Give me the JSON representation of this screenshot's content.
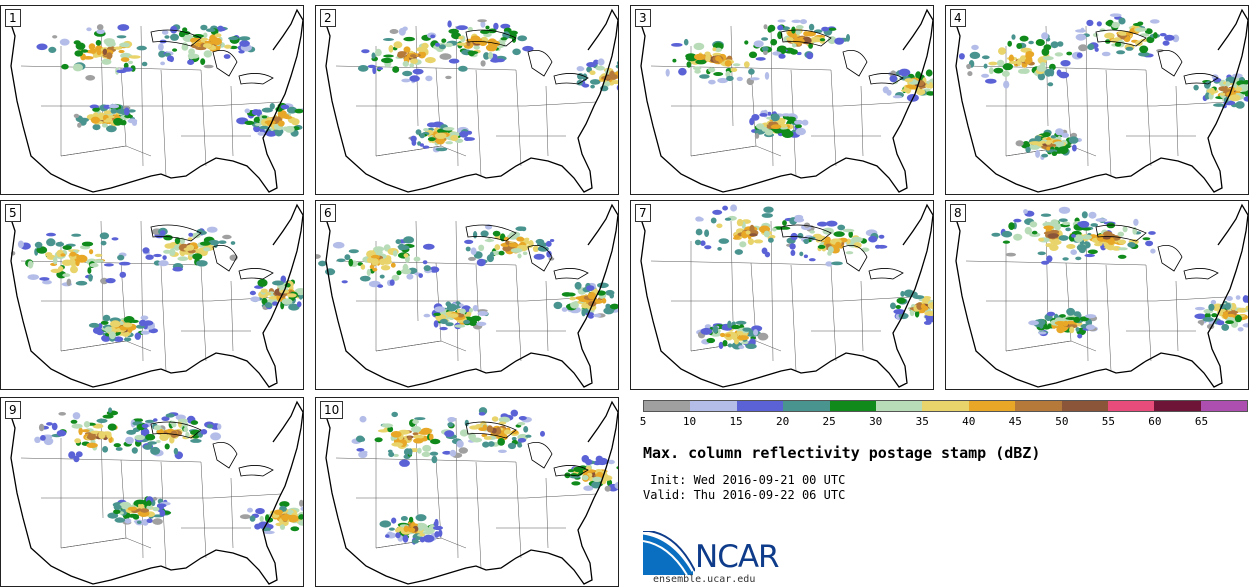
{
  "panels": [
    {
      "label": "1"
    },
    {
      "label": "2"
    },
    {
      "label": "3"
    },
    {
      "label": "4"
    },
    {
      "label": "5"
    },
    {
      "label": "6"
    },
    {
      "label": "7"
    },
    {
      "label": "8"
    },
    {
      "label": "9"
    },
    {
      "label": "10"
    }
  ],
  "colorbar": {
    "colors": [
      "#a0a0a0",
      "#b4bde8",
      "#5b62d6",
      "#4a9490",
      "#0f8a1b",
      "#b9dcb8",
      "#e8d46a",
      "#e8a726",
      "#b57a39",
      "#8a5538",
      "#e84c7a",
      "#6e1436",
      "#ad4fb0"
    ],
    "tick_labels": [
      "5",
      "10",
      "15",
      "20",
      "25",
      "30",
      "35",
      "40",
      "45",
      "50",
      "55",
      "60",
      "65"
    ]
  },
  "title": "Max. column reflectivity postage stamp (dBZ)",
  "init_line": " Init: Wed 2016-09-21 00 UTC",
  "valid_line": "Valid: Thu 2016-09-22 06 UTC",
  "logo": {
    "wordmark": "NCAR",
    "url": "ensemble.ucar.edu",
    "color": "#0f3c8a"
  }
}
